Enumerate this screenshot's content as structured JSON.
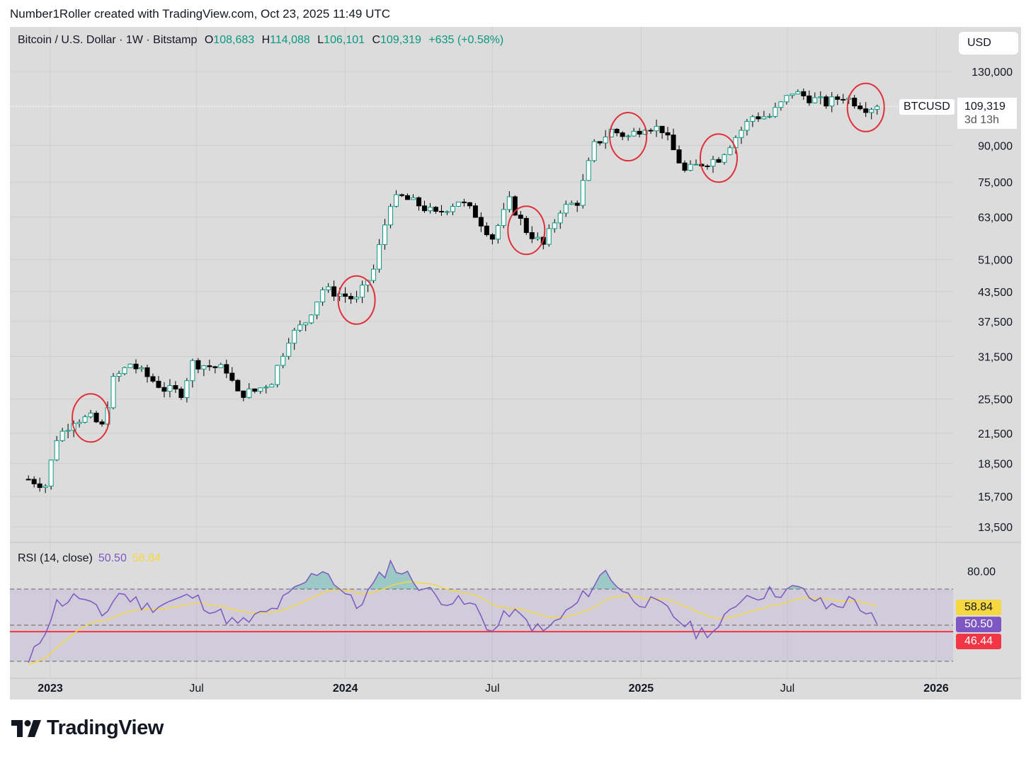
{
  "caption": "Number1Roller created with TradingView.com, Oct 23, 2025 11:49 UTC",
  "legend": {
    "symbol": "Bitcoin / U.S. Dollar · 1W · Bitstamp",
    "open_label": "O",
    "open": "108,683",
    "high_label": "H",
    "high": "114,088",
    "low_label": "L",
    "low": "106,101",
    "close_label": "C",
    "close": "109,319",
    "change": "+635 (+0.58%)"
  },
  "currency_button": "USD",
  "price_tag": {
    "ticker": "BTCUSD",
    "price": "109,319",
    "countdown": "3d 13h"
  },
  "rsi": {
    "label": "RSI (14, close)",
    "value": "50.50",
    "ma_value": "58.84",
    "level_badge": "46.44",
    "axis_label": "80.00"
  },
  "brand": "TradingView",
  "colors": {
    "up": "#ffffff",
    "down": "#000000",
    "teal": "#089981",
    "rsi_line": "#7e57c2",
    "rsi_ma": "#f5d742",
    "red_line": "#f23645",
    "circle": "#e0303a"
  },
  "chart_data": {
    "type": "candlestick",
    "scale": "log",
    "interval": "1W",
    "price_axis_ticks": [
      130000,
      109319,
      90000,
      75000,
      63000,
      51000,
      43500,
      37500,
      31500,
      25500,
      21500,
      18500,
      15700,
      13500
    ],
    "time_axis_labels": [
      {
        "label": "2023",
        "date": "2023-01-01",
        "bold": true
      },
      {
        "label": "Jul",
        "date": "2023-07-01",
        "bold": false
      },
      {
        "label": "2024",
        "date": "2024-01-01",
        "bold": true
      },
      {
        "label": "Jul",
        "date": "2024-07-01",
        "bold": false
      },
      {
        "label": "2025",
        "date": "2025-01-01",
        "bold": true
      },
      {
        "label": "Jul",
        "date": "2025-07-01",
        "bold": false
      },
      {
        "label": "2026",
        "date": "2026-01-01",
        "bold": true
      }
    ],
    "x_start": "2022-12-05",
    "candle_close_keys": [
      [
        "2022-12-05",
        17100
      ],
      [
        "2022-12-26",
        16600
      ],
      [
        "2023-01-09",
        21000
      ],
      [
        "2023-01-30",
        23000
      ],
      [
        "2023-02-20",
        23200
      ],
      [
        "2023-03-06",
        22200
      ],
      [
        "2023-03-20",
        28000
      ],
      [
        "2023-04-10",
        30400
      ],
      [
        "2023-05-01",
        28500
      ],
      [
        "2023-05-22",
        26800
      ],
      [
        "2023-06-12",
        26300
      ],
      [
        "2023-06-26",
        30500
      ],
      [
        "2023-07-17",
        30000
      ],
      [
        "2023-08-07",
        29500
      ],
      [
        "2023-08-21",
        26100
      ],
      [
        "2023-09-11",
        26500
      ],
      [
        "2023-10-02",
        27900
      ],
      [
        "2023-10-23",
        34500
      ],
      [
        "2023-11-13",
        37500
      ],
      [
        "2023-12-04",
        44000
      ],
      [
        "2023-12-25",
        43000
      ],
      [
        "2024-01-15",
        41700
      ],
      [
        "2024-02-05",
        48500
      ],
      [
        "2024-02-26",
        68000
      ],
      [
        "2024-03-11",
        69500
      ],
      [
        "2024-04-01",
        67000
      ],
      [
        "2024-04-22",
        63800
      ],
      [
        "2024-05-20",
        68500
      ],
      [
        "2024-06-10",
        63800
      ],
      [
        "2024-07-01",
        56900
      ],
      [
        "2024-07-22",
        68200
      ],
      [
        "2024-08-12",
        59000
      ],
      [
        "2024-09-02",
        54800
      ],
      [
        "2024-09-23",
        65500
      ],
      [
        "2024-10-14",
        68000
      ],
      [
        "2024-11-04",
        90000
      ],
      [
        "2024-11-25",
        97000
      ],
      [
        "2024-12-16",
        94000
      ],
      [
        "2025-01-06",
        99500
      ],
      [
        "2025-01-27",
        97500
      ],
      [
        "2025-02-24",
        79000
      ],
      [
        "2025-03-17",
        82300
      ],
      [
        "2025-04-07",
        84500
      ],
      [
        "2025-04-28",
        94000
      ],
      [
        "2025-05-19",
        104000
      ],
      [
        "2025-06-09",
        104000
      ],
      [
        "2025-07-07",
        117500
      ],
      [
        "2025-07-28",
        114000
      ],
      [
        "2025-08-18",
        111000
      ],
      [
        "2025-09-08",
        115000
      ],
      [
        "2025-10-06",
        108700
      ],
      [
        "2025-10-20",
        109319
      ]
    ],
    "rsi_series_keys": [
      [
        "2022-12-05",
        28
      ],
      [
        "2023-01-09",
        62
      ],
      [
        "2023-02-06",
        66
      ],
      [
        "2023-03-06",
        55
      ],
      [
        "2023-03-27",
        68
      ],
      [
        "2023-05-01",
        60
      ],
      [
        "2023-06-26",
        66
      ],
      [
        "2023-08-21",
        50
      ],
      [
        "2023-10-02",
        58
      ],
      [
        "2023-11-13",
        74
      ],
      [
        "2023-12-04",
        82
      ],
      [
        "2024-01-15",
        60
      ],
      [
        "2024-02-26",
        84
      ],
      [
        "2024-04-22",
        66
      ],
      [
        "2024-06-10",
        60
      ],
      [
        "2024-07-01",
        46
      ],
      [
        "2024-07-22",
        58
      ],
      [
        "2024-09-02",
        46
      ],
      [
        "2024-10-14",
        62
      ],
      [
        "2024-11-18",
        80
      ],
      [
        "2024-12-16",
        66
      ],
      [
        "2025-01-27",
        60
      ],
      [
        "2025-03-10",
        46
      ],
      [
        "2025-04-07",
        48
      ],
      [
        "2025-05-05",
        66
      ],
      [
        "2025-07-14",
        70
      ],
      [
        "2025-08-18",
        60
      ],
      [
        "2025-09-22",
        64
      ],
      [
        "2025-10-20",
        50.5
      ]
    ],
    "rsi_ma_value": 58.84,
    "rsi_bands": [
      30,
      50,
      70
    ],
    "highlight_circles": [
      "2023-02-20",
      "2024-01-15",
      "2024-08-12",
      "2024-12-16",
      "2025-04-07",
      "2025-10-06"
    ]
  }
}
